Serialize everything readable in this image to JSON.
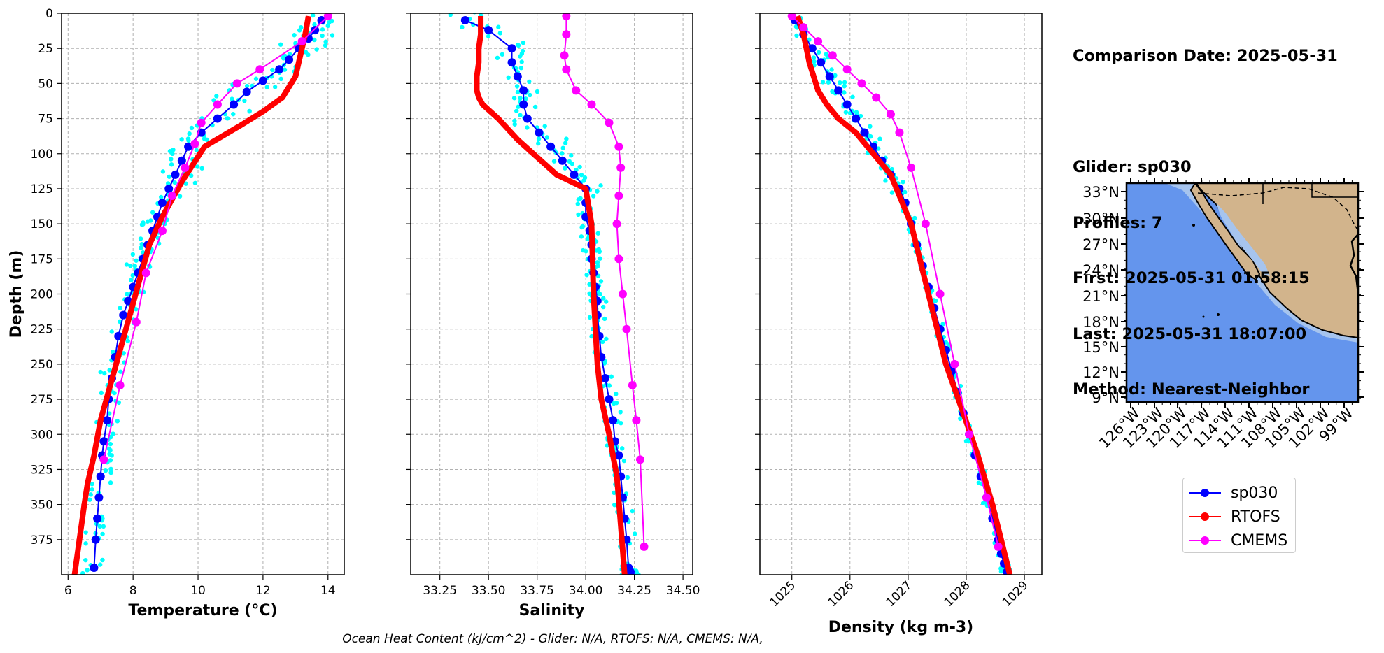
{
  "info": {
    "comparison_date": "Comparison Date: 2025-05-31",
    "glider": "Glider: sp030",
    "profiles": "Profiles: 7",
    "first": "First: 2025-05-31 01:58:15",
    "last": "Last: 2025-05-31 18:07:00",
    "method": "Method: Nearest-Neighbor"
  },
  "footer": "Ocean Heat Content (kJ/cm^2) - Glider: N/A,  RTOFS: N/A,  CMEMS: N/A,",
  "colors": {
    "glider": "#0000ff",
    "glider_scatter": "#00ffff",
    "rtofs": "#ff0000",
    "cmems": "#ff00ff",
    "ocean": "#6495ed",
    "land": "#d2b48c",
    "shelf": "#a6c4ee"
  },
  "legend": [
    {
      "name": "sp030",
      "color": "#0000ff"
    },
    {
      "name": "RTOFS",
      "color": "#ff0000"
    },
    {
      "name": "CMEMS",
      "color": "#ff00ff"
    }
  ],
  "map": {
    "lat_labels": [
      "33°N",
      "30°N",
      "27°N",
      "24°N",
      "21°N",
      "18°N",
      "15°N",
      "12°N",
      "9°N"
    ],
    "lon_labels": [
      "126°W",
      "123°W",
      "120°W",
      "117°W",
      "114°W",
      "111°W",
      "108°W",
      "105°W",
      "102°W",
      "99°W"
    ]
  },
  "chart_data": [
    {
      "type": "line",
      "xlabel": "Temperature (°C)",
      "ylabel": "Depth (m)",
      "xlim": [
        5.8,
        14.5
      ],
      "ylim": [
        400,
        0
      ],
      "xticks": [
        6,
        8,
        10,
        12,
        14
      ],
      "yticks": [
        0,
        25,
        50,
        75,
        100,
        125,
        150,
        175,
        200,
        225,
        250,
        275,
        300,
        325,
        350,
        375
      ],
      "grid": true,
      "series": [
        {
          "name": "sp030",
          "x": [
            13.8,
            13.6,
            13.4,
            13.1,
            12.8,
            12.5,
            12.0,
            11.5,
            11.1,
            10.6,
            10.1,
            9.7,
            9.5,
            9.3,
            9.1,
            8.9,
            8.75,
            8.6,
            8.45,
            8.3,
            8.15,
            8.0,
            7.85,
            7.7,
            7.55,
            7.45,
            7.35,
            7.25,
            7.2,
            7.1,
            7.05,
            7.0,
            6.95,
            6.9,
            6.85,
            6.8
          ],
          "y": [
            5,
            12,
            18,
            25,
            33,
            40,
            48,
            56,
            65,
            75,
            85,
            95,
            105,
            115,
            125,
            135,
            145,
            155,
            165,
            175,
            185,
            195,
            205,
            215,
            230,
            245,
            260,
            275,
            290,
            305,
            315,
            330,
            345,
            360,
            375,
            395
          ]
        },
        {
          "name": "RTOFS",
          "x": [
            13.4,
            13.3,
            13.2,
            13.0,
            12.6,
            12.0,
            11.3,
            10.2,
            9.5,
            8.9,
            8.5,
            8.2,
            7.9,
            7.6,
            7.3,
            7.0,
            6.8,
            6.6,
            6.5,
            6.2
          ],
          "y": [
            2,
            15,
            25,
            45,
            60,
            70,
            80,
            95,
            120,
            145,
            165,
            190,
            215,
            240,
            265,
            290,
            315,
            335,
            350,
            400
          ]
        },
        {
          "name": "CMEMS",
          "x": [
            14.0,
            13.2,
            11.9,
            11.2,
            10.6,
            10.1,
            9.9,
            9.6,
            9.2,
            8.9,
            8.4,
            8.1,
            7.6,
            7.1
          ],
          "y": [
            2,
            20,
            40,
            50,
            65,
            78,
            93,
            110,
            130,
            155,
            185,
            220,
            265,
            318
          ]
        }
      ]
    },
    {
      "type": "line",
      "xlabel": "Salinity",
      "ylabel": "",
      "xlim": [
        33.1,
        34.55
      ],
      "ylim": [
        400,
        0
      ],
      "xticks": [
        33.25,
        33.5,
        33.75,
        34.0,
        34.25,
        34.5
      ],
      "grid": true,
      "series": [
        {
          "name": "sp030",
          "x": [
            33.38,
            33.5,
            33.62,
            33.62,
            33.65,
            33.68,
            33.68,
            33.7,
            33.76,
            33.82,
            33.88,
            33.94,
            34.0,
            34.0,
            34.0,
            34.02,
            34.03,
            34.03,
            34.04,
            34.05,
            34.06,
            34.06,
            34.07,
            34.08,
            34.1,
            34.12,
            34.14,
            34.15,
            34.17,
            34.18,
            34.19,
            34.2,
            34.21,
            34.22,
            34.23,
            34.23
          ],
          "y": [
            5,
            12,
            25,
            35,
            45,
            55,
            65,
            75,
            85,
            95,
            105,
            115,
            125,
            135,
            145,
            155,
            165,
            175,
            185,
            195,
            205,
            215,
            230,
            245,
            260,
            275,
            290,
            305,
            315,
            330,
            345,
            360,
            375,
            395,
            398,
            400
          ]
        },
        {
          "name": "RTOFS",
          "x": [
            33.46,
            33.46,
            33.45,
            33.45,
            33.44,
            33.44,
            33.45,
            33.47,
            33.55,
            33.65,
            33.73,
            33.85,
            34.0,
            34.03,
            34.04,
            34.06,
            34.08,
            34.12,
            34.16,
            34.2
          ],
          "y": [
            2,
            15,
            25,
            35,
            45,
            55,
            60,
            65,
            75,
            90,
            100,
            115,
            125,
            150,
            200,
            250,
            275,
            300,
            330,
            400
          ]
        },
        {
          "name": "CMEMS",
          "x": [
            33.9,
            33.9,
            33.89,
            33.9,
            33.95,
            34.03,
            34.12,
            34.17,
            34.18,
            34.17,
            34.16,
            34.17,
            34.19,
            34.21,
            34.24,
            34.26,
            34.28,
            34.3
          ],
          "y": [
            2,
            15,
            30,
            40,
            55,
            65,
            78,
            95,
            110,
            130,
            150,
            175,
            200,
            225,
            265,
            290,
            318,
            380
          ]
        }
      ]
    },
    {
      "type": "line",
      "xlabel": "Density (kg m-3)",
      "ylabel": "",
      "xlim": [
        1024.45,
        1029.3
      ],
      "ylim": [
        400,
        0
      ],
      "xticks": [
        1025,
        1026,
        1027,
        1028,
        1029
      ],
      "grid": true,
      "series": [
        {
          "name": "sp030",
          "x": [
            1025.05,
            1025.2,
            1025.35,
            1025.5,
            1025.65,
            1025.8,
            1025.95,
            1026.1,
            1026.25,
            1026.4,
            1026.55,
            1026.7,
            1026.85,
            1026.95,
            1027.05,
            1027.15,
            1027.25,
            1027.35,
            1027.45,
            1027.55,
            1027.65,
            1027.75,
            1027.85,
            1027.95,
            1028.05,
            1028.15,
            1028.25,
            1028.35,
            1028.45,
            1028.55,
            1028.6,
            1028.65,
            1028.7
          ],
          "y": [
            5,
            15,
            25,
            35,
            45,
            55,
            65,
            75,
            85,
            95,
            105,
            115,
            125,
            135,
            150,
            165,
            180,
            195,
            210,
            225,
            240,
            255,
            270,
            285,
            300,
            315,
            330,
            345,
            360,
            375,
            385,
            392,
            398
          ]
        },
        {
          "name": "RTOFS",
          "x": [
            1025.1,
            1025.2,
            1025.3,
            1025.45,
            1025.6,
            1025.8,
            1026.1,
            1026.4,
            1026.7,
            1027.05,
            1027.35,
            1027.65,
            1027.95,
            1028.2,
            1028.45,
            1028.75
          ],
          "y": [
            2,
            15,
            35,
            55,
            65,
            75,
            85,
            100,
            115,
            150,
            200,
            250,
            285,
            315,
            350,
            400
          ]
        },
        {
          "name": "CMEMS",
          "x": [
            1025.0,
            1025.2,
            1025.45,
            1025.7,
            1025.95,
            1026.2,
            1026.45,
            1026.7,
            1026.85,
            1027.05,
            1027.3,
            1027.55,
            1027.8,
            1028.05,
            1028.35,
            1028.55
          ],
          "y": [
            2,
            10,
            20,
            30,
            40,
            50,
            60,
            72,
            85,
            110,
            150,
            200,
            250,
            300,
            345,
            380
          ]
        }
      ]
    }
  ]
}
